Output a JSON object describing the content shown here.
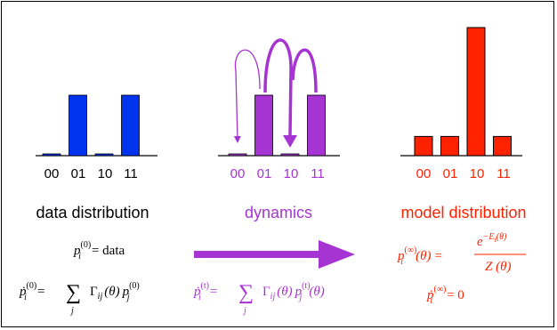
{
  "colors": {
    "blue": "#0033ee",
    "purple": "#a534d2",
    "red": "#ff2200",
    "axis": "#000000"
  },
  "panels": {
    "data": {
      "categories": [
        "00",
        "01",
        "10",
        "11"
      ],
      "values": [
        0.02,
        1.0,
        0.02,
        1.0
      ],
      "title": "data distribution",
      "eq1": {
        "lhs": "p",
        "sub": "i",
        "sup": "(0)",
        "rhs": "= data"
      },
      "eq2": {
        "lhs": "ṗ",
        "sub": "i",
        "sup": "(0)",
        "eq": "=",
        "sum": "∑",
        "sum_sub": "j",
        "gamma": "Γ",
        "gamma_sub": "ij",
        "arg": "(θ)",
        "p": "p",
        "p_sub": "j",
        "p_sup": "(0)"
      }
    },
    "dynamics": {
      "categories": [
        "00",
        "01",
        "10",
        "11"
      ],
      "values": [
        0.02,
        1.0,
        0.02,
        1.0
      ],
      "title": "dynamics",
      "arrows": [
        {
          "from": "01",
          "to": "00"
        },
        {
          "from": "01",
          "to": "10"
        },
        {
          "from": "11",
          "to": "10"
        }
      ],
      "eq": {
        "lhs": "ṗ",
        "sub": "i",
        "sup": "(t)",
        "eq": "=",
        "sum": "∑",
        "sum_sub": "j",
        "gamma": "Γ",
        "gamma_sub": "ij",
        "arg": "(θ)",
        "p": "p",
        "p_sub": "j",
        "p_sup": "(t)",
        "p_arg": "(θ)"
      }
    },
    "model": {
      "categories": [
        "00",
        "01",
        "10",
        "11"
      ],
      "values": [
        0.15,
        0.15,
        1.0,
        0.15
      ],
      "title": "model distribution",
      "eq1": {
        "lhs": "p",
        "sub": "i",
        "sup": "(∞)",
        "arg": "(θ)",
        "eq": "=",
        "num": "e",
        "num_sup": "−E",
        "num_sup_sub": "i",
        "num_sup_arg": "(θ)",
        "den": "Z (θ)"
      },
      "eq2": {
        "lhs": "ṗ",
        "sub": "i",
        "sup": "(∞)",
        "rhs": "= 0"
      }
    }
  }
}
